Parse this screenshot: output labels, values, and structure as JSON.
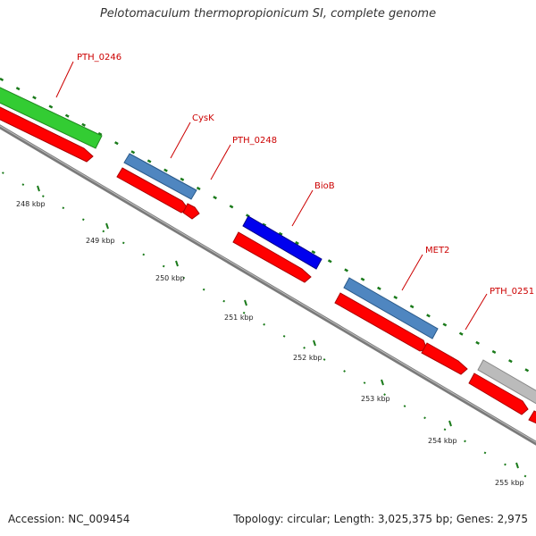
{
  "title": "Pelotomaculum thermopropionicum SI, complete genome",
  "accession": "Accession: NC_009454",
  "summary": "Topology: circular; Length: 3,025,375 bp; Genes: 2,975",
  "colors": {
    "backbone": "#8a8a8a",
    "tick": "#1a7a1a",
    "label": "#cc0000",
    "red": "#ff0000",
    "green": "#33cc33",
    "steelblue": "#4f86c0",
    "blue": "#0000ee",
    "gray": "#bbbbbb"
  },
  "scale_labels": [
    "248 kbp",
    "249 kbp",
    "250 kbp",
    "251 kbp",
    "252 kbp",
    "253 kbp",
    "254 kbp",
    "255 kbp"
  ],
  "gene_labels": [
    "PTH_0246",
    "CysK",
    "PTH_0248",
    "BioB",
    "MET2",
    "PTH_0251"
  ]
}
